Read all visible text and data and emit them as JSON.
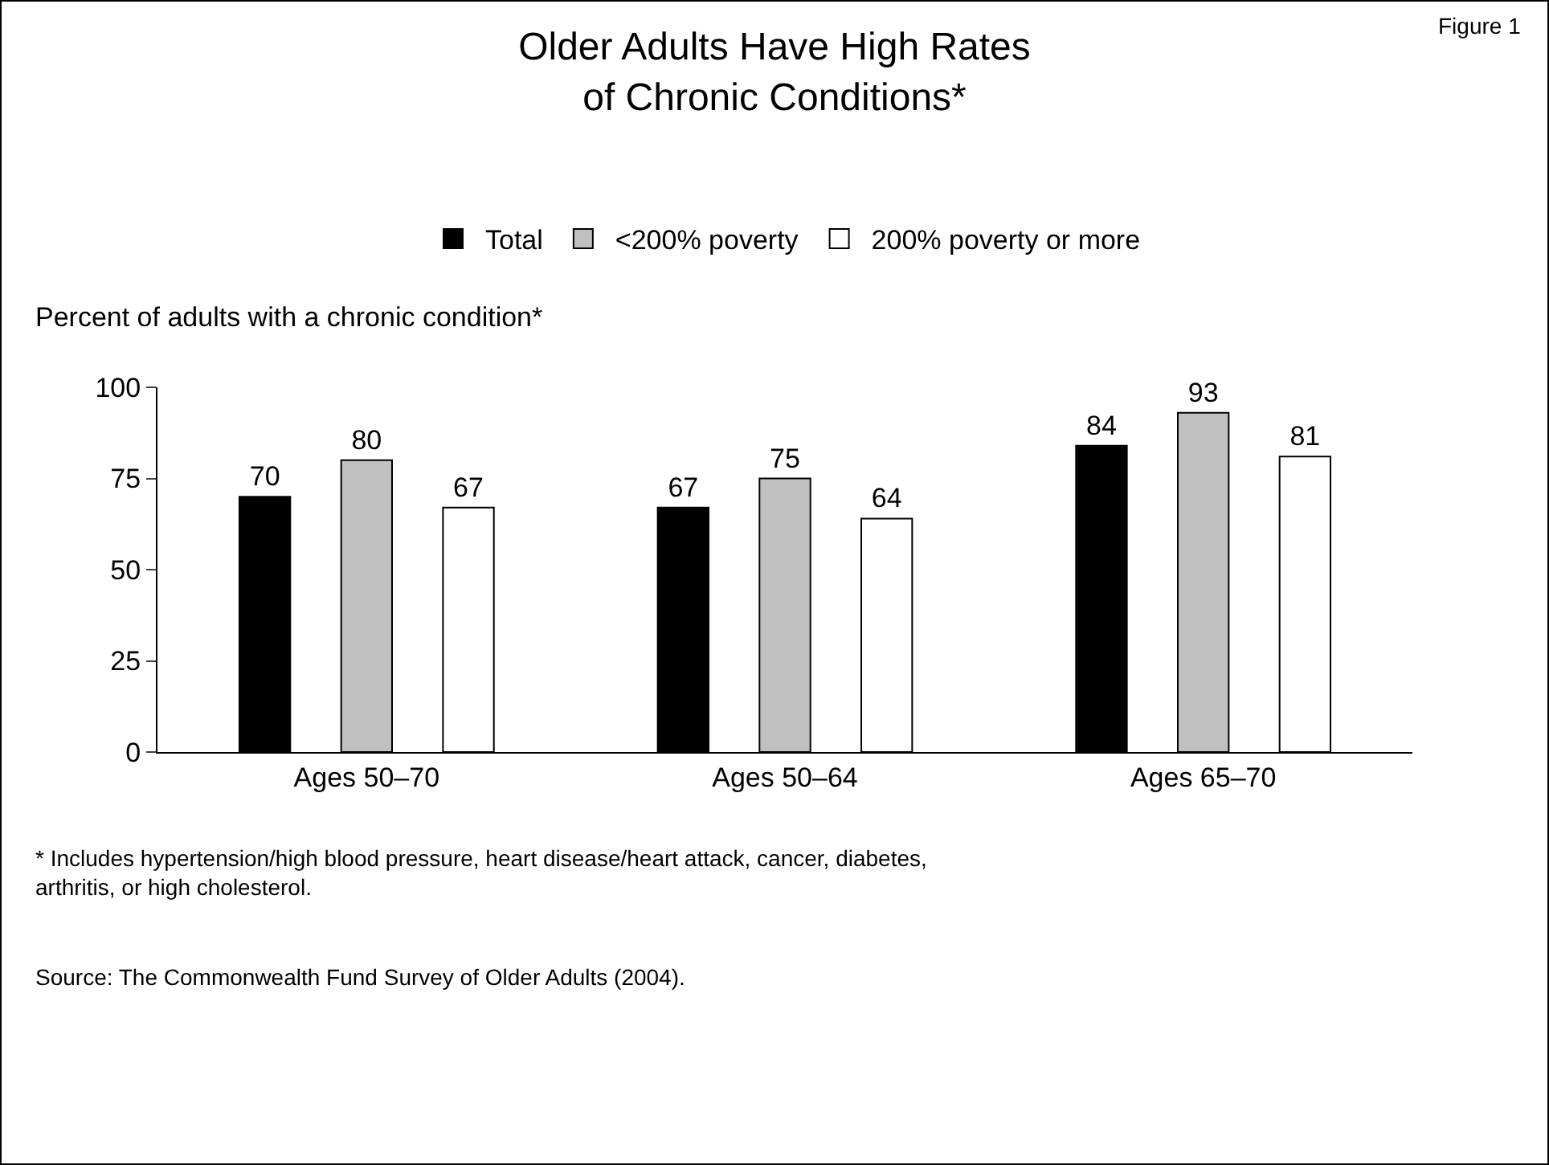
{
  "chart_data": {
    "type": "bar",
    "title": "Older Adults Have High Rates\nof Chronic Conditions*",
    "ylabel": "Percent of adults with a chronic condition*",
    "categories": [
      "Ages 50–70",
      "Ages 50–64",
      "Ages 65–70"
    ],
    "series": [
      {
        "name": "Total",
        "color": "#000000",
        "values": [
          70,
          67,
          84
        ]
      },
      {
        "name": "<200% poverty",
        "color": "#c0c0c0",
        "values": [
          80,
          75,
          93
        ]
      },
      {
        "name": "200% poverty or more",
        "color": "#ffffff",
        "values": [
          67,
          64,
          81
        ]
      }
    ],
    "ylim": [
      0,
      100
    ],
    "yticks": [
      0,
      25,
      50,
      75,
      100
    ],
    "grid": false,
    "legend": "top",
    "data_labels": true,
    "annotations": [
      "Figure 1",
      "* Includes hypertension/high blood pressure, heart disease/heart attack, cancer, diabetes,\narthritis, or high cholesterol.",
      "Source: The Commonwealth Fund Survey of Older Adults (2004)."
    ]
  }
}
